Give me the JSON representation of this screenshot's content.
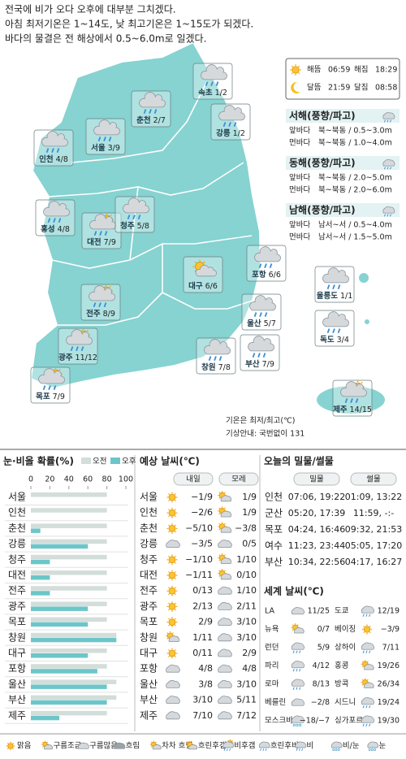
{
  "header": {
    "lines": [
      "전국에 비가 오다 오후에 대부분 그치겠다.",
      "아침 최저기온은 1~14도, 낮 최고기온은 1~15도가 되겠다.",
      "바다의 물결은 전 해상에서 0.5~6.0m로 일겠다."
    ]
  },
  "map": {
    "cities": [
      {
        "name": "속초",
        "temp": "1/2",
        "icon": "rain"
      },
      {
        "name": "춘천",
        "temp": "2/7",
        "icon": "rain"
      },
      {
        "name": "강릉",
        "temp": "1/2",
        "icon": "rain"
      },
      {
        "name": "서울",
        "temp": "3/9",
        "icon": "rain"
      },
      {
        "name": "인천",
        "temp": "4/8",
        "icon": "rain"
      },
      {
        "name": "홍성",
        "temp": "4/8",
        "icon": "rain"
      },
      {
        "name": "대전",
        "temp": "7/9",
        "icon": "sunrain"
      },
      {
        "name": "청주",
        "temp": "5/8",
        "icon": "rain"
      },
      {
        "name": "대구",
        "temp": "6/6",
        "icon": "partly"
      },
      {
        "name": "포항",
        "temp": "6/6",
        "icon": "rain"
      },
      {
        "name": "울릉도",
        "temp": "1/1",
        "icon": "rain"
      },
      {
        "name": "전주",
        "temp": "8/9",
        "icon": "sunrain"
      },
      {
        "name": "울산",
        "temp": "5/7",
        "icon": "rain"
      },
      {
        "name": "독도",
        "temp": "3/4",
        "icon": "rain"
      },
      {
        "name": "광주",
        "temp": "11/12",
        "icon": "sunrain"
      },
      {
        "name": "창원",
        "temp": "7/8",
        "icon": "rain"
      },
      {
        "name": "부산",
        "temp": "7/9",
        "icon": "rain"
      },
      {
        "name": "목포",
        "temp": "7/9",
        "icon": "sunrain"
      },
      {
        "name": "제주",
        "temp": "14/15",
        "icon": "sunrain"
      }
    ],
    "note": [
      "기온은 최저/최고(℃)",
      "기상안내: 국번없이 131"
    ]
  },
  "sun_moon": {
    "rows": [
      [
        {
          "label": "해뜸",
          "time": "06:59"
        },
        {
          "label": "해짐",
          "time": "18:29"
        }
      ],
      [
        {
          "label": "달뜸",
          "time": "21:59"
        },
        {
          "label": "달짐",
          "time": "08:58"
        }
      ]
    ]
  },
  "seas": [
    {
      "title": "서해(풍향/파고)",
      "rows": [
        {
          "label": "앞바다",
          "value": "북~북동 / 0.5~3.0m"
        },
        {
          "label": "먼바다",
          "value": "북~북동 / 1.0~4.0m"
        }
      ]
    },
    {
      "title": "동해(풍향/파고)",
      "rows": [
        {
          "label": "앞바다",
          "value": "북~북동 / 2.0~5.0m"
        },
        {
          "label": "먼바다",
          "value": "북~북동 / 2.0~6.0m"
        }
      ]
    },
    {
      "title": "남해(풍향/파고)",
      "rows": [
        {
          "label": "앞바다",
          "value": "남서~서 / 0.5~4.0m"
        },
        {
          "label": "먼바다",
          "value": "남서~서 / 1.5~5.0m"
        }
      ]
    }
  ],
  "chart_data": {
    "type": "bar",
    "title": "눈·비올 확률(%)",
    "orientation": "horizontal",
    "categories": [
      "서울",
      "인천",
      "춘천",
      "강릉",
      "청주",
      "대전",
      "전주",
      "광주",
      "목포",
      "창원",
      "대구",
      "포항",
      "울산",
      "부산",
      "제주"
    ],
    "series": [
      {
        "name": "오전",
        "color": "#d3ddd9",
        "values": [
          80,
          80,
          80,
          80,
          80,
          80,
          80,
          80,
          80,
          90,
          80,
          80,
          90,
          90,
          80
        ]
      },
      {
        "name": "오후",
        "color": "#6cc6c9",
        "values": [
          0,
          0,
          10,
          60,
          20,
          20,
          20,
          60,
          60,
          90,
          60,
          70,
          80,
          80,
          30
        ]
      }
    ],
    "xlim": [
      0,
      100
    ],
    "xticks": [
      0,
      20,
      40,
      60,
      80,
      100
    ],
    "grid": false
  },
  "forecast": {
    "title": "예상 날씨(℃)",
    "headers": [
      "내일",
      "모레"
    ],
    "rows": [
      {
        "city": "서울",
        "day1": "−1/9",
        "day2": "1/9",
        "icons": [
          "sun",
          "partly"
        ]
      },
      {
        "city": "인천",
        "day1": "−2/6",
        "day2": "1/9",
        "icons": [
          "sun",
          "partly"
        ]
      },
      {
        "city": "춘천",
        "day1": "−5/10",
        "day2": "−3/8",
        "icons": [
          "sun",
          "partly"
        ]
      },
      {
        "city": "강릉",
        "day1": "−3/5",
        "day2": "0/5",
        "icons": [
          "cloud",
          "cloud"
        ]
      },
      {
        "city": "청주",
        "day1": "−1/10",
        "day2": "1/10",
        "icons": [
          "sun",
          "partly"
        ]
      },
      {
        "city": "대전",
        "day1": "−1/11",
        "day2": "0/10",
        "icons": [
          "sun",
          "partly"
        ]
      },
      {
        "city": "전주",
        "day1": "0/13",
        "day2": "1/10",
        "icons": [
          "sun",
          "cloud"
        ]
      },
      {
        "city": "광주",
        "day1": "2/13",
        "day2": "2/11",
        "icons": [
          "sun",
          "cloud"
        ]
      },
      {
        "city": "목포",
        "day1": "2/9",
        "day2": "3/10",
        "icons": [
          "sun",
          "cloud"
        ]
      },
      {
        "city": "창원",
        "day1": "1/11",
        "day2": "3/10",
        "icons": [
          "partly",
          "cloud"
        ]
      },
      {
        "city": "대구",
        "day1": "0/11",
        "day2": "2/9",
        "icons": [
          "sun",
          "cloud"
        ]
      },
      {
        "city": "포항",
        "day1": "4/8",
        "day2": "4/8",
        "icons": [
          "cloud",
          "cloud"
        ]
      },
      {
        "city": "울산",
        "day1": "3/8",
        "day2": "3/10",
        "icons": [
          "cloud",
          "cloud"
        ]
      },
      {
        "city": "부산",
        "day1": "3/10",
        "day2": "5/11",
        "icons": [
          "cloud",
          "cloud"
        ]
      },
      {
        "city": "제주",
        "day1": "7/10",
        "day2": "7/12",
        "icons": [
          "cloud",
          "cloud"
        ]
      }
    ]
  },
  "tide": {
    "title": "오늘의 밀물/썰물",
    "headers": [
      "밀물",
      "썰물"
    ],
    "rows": [
      {
        "port": "인천",
        "high": "07:06, 19:22",
        "low": "01:09, 13:22"
      },
      {
        "port": "군산",
        "high": "05:20, 17:39",
        "low": "11:59,  -:-"
      },
      {
        "port": "목포",
        "high": "04:24, 16:46",
        "low": "09:32, 21:53"
      },
      {
        "port": "여수",
        "high": "11:23, 23:44",
        "low": "05:05, 17:20"
      },
      {
        "port": "부산",
        "high": "10:34, 22:56",
        "low": "04:17, 16:27"
      }
    ]
  },
  "world": {
    "title": "세계 날씨(℃)",
    "rows": [
      {
        "city": "LA",
        "temp": "11/25",
        "icon": "cloud"
      },
      {
        "city": "도쿄",
        "temp": "12/19",
        "icon": "rain"
      },
      {
        "city": "뉴욕",
        "temp": "0/7",
        "icon": "partly"
      },
      {
        "city": "베이징",
        "temp": "−3/9",
        "icon": "sun"
      },
      {
        "city": "런던",
        "temp": "5/9",
        "icon": "rain"
      },
      {
        "city": "상하이",
        "temp": "7/11",
        "icon": "rain"
      },
      {
        "city": "파리",
        "temp": "4/12",
        "icon": "rain"
      },
      {
        "city": "홍콩",
        "temp": "19/26",
        "icon": "partly"
      },
      {
        "city": "로마",
        "temp": "8/13",
        "icon": "rain"
      },
      {
        "city": "방콕",
        "temp": "26/34",
        "icon": "partly"
      },
      {
        "city": "베를린",
        "temp": "−2/8",
        "icon": "cloud"
      },
      {
        "city": "시드니",
        "temp": "19/24",
        "icon": "rain"
      },
      {
        "city": "모스크바",
        "temp": "−18/−7",
        "icon": "snow"
      },
      {
        "city": "싱가포르",
        "temp": "19/30",
        "icon": "rain"
      }
    ]
  },
  "legend": {
    "items": [
      {
        "label": "맑음",
        "icon": "sun"
      },
      {
        "label": "구름조금",
        "icon": "partly"
      },
      {
        "label": "구름많음",
        "icon": "cloud"
      },
      {
        "label": "흐림",
        "icon": "dark"
      },
      {
        "label": "차차 흐림",
        "icon": "partly"
      },
      {
        "label": "흐린후갬",
        "icon": "partly"
      },
      {
        "label": "비후갬",
        "icon": "sunrain"
      },
      {
        "label": "흐린후비",
        "icon": "rain"
      },
      {
        "label": "비",
        "icon": "rain"
      },
      {
        "label": "비/눈",
        "icon": "snow"
      },
      {
        "label": "눈",
        "icon": "snow"
      }
    ]
  }
}
